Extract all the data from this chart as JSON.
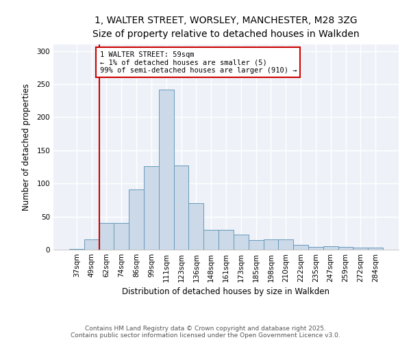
{
  "title_line1": "1, WALTER STREET, WORSLEY, MANCHESTER, M28 3ZG",
  "title_line2": "Size of property relative to detached houses in Walkden",
  "xlabel": "Distribution of detached houses by size in Walkden",
  "ylabel": "Number of detached properties",
  "categories": [
    "37sqm",
    "49sqm",
    "62sqm",
    "74sqm",
    "86sqm",
    "99sqm",
    "111sqm",
    "123sqm",
    "136sqm",
    "148sqm",
    "161sqm",
    "173sqm",
    "185sqm",
    "198sqm",
    "210sqm",
    "222sqm",
    "235sqm",
    "247sqm",
    "259sqm",
    "272sqm",
    "284sqm"
  ],
  "values": [
    1,
    16,
    40,
    40,
    91,
    126,
    242,
    127,
    70,
    30,
    30,
    23,
    14,
    16,
    15,
    7,
    4,
    5,
    4,
    3,
    3
  ],
  "bar_color": "#ccd9e8",
  "bar_edge_color": "#6699bb",
  "red_line_index": 2,
  "red_line_color": "#cc0000",
  "annotation_text": "1 WALTER STREET: 59sqm\n← 1% of detached houses are smaller (5)\n99% of semi-detached houses are larger (910) →",
  "annotation_box_color": "#ffffff",
  "annotation_box_edge_color": "#cc0000",
  "ylim": [
    0,
    310
  ],
  "yticks": [
    0,
    50,
    100,
    150,
    200,
    250,
    300
  ],
  "footer_line1": "Contains HM Land Registry data © Crown copyright and database right 2025.",
  "footer_line2": "Contains public sector information licensed under the Open Government Licence v3.0.",
  "bg_color": "#ffffff",
  "plot_bg_color": "#eef2f8",
  "grid_color": "#ffffff",
  "title_fontsize": 10,
  "subtitle_fontsize": 9,
  "axis_label_fontsize": 8.5,
  "tick_fontsize": 7.5,
  "annotation_fontsize": 7.5,
  "footer_fontsize": 6.5
}
